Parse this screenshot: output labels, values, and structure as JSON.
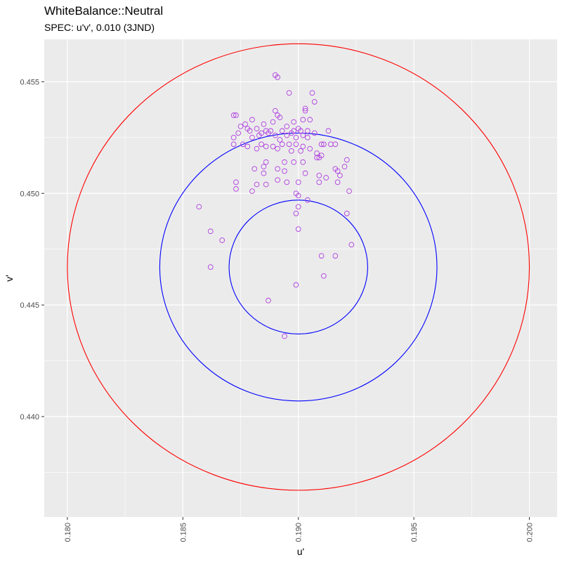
{
  "chart_data": {
    "type": "scatter",
    "title": "WhiteBalance::Neutral",
    "subtitle": "SPEC: u'v', 0.010 (3JND)",
    "xlabel": "u'",
    "ylabel": "v'",
    "xlim": [
      0.179,
      0.2012
    ],
    "ylim": [
      0.4355,
      0.4569
    ],
    "x_ticks": [
      "0.180",
      "0.185",
      "0.190",
      "0.195",
      "0.200"
    ],
    "y_ticks": [
      "0.440",
      "0.445",
      "0.450",
      "0.455"
    ],
    "grid": true,
    "background_color": "#EBEBEB",
    "point_color": "#B040E0",
    "circles": [
      {
        "center": [
          0.19,
          0.4467
        ],
        "radius": 0.01,
        "color": "#FF0000"
      },
      {
        "center": [
          0.19,
          0.4467
        ],
        "radius": 0.006,
        "color": "#0000FF"
      },
      {
        "center": [
          0.19,
          0.4467
        ],
        "radius": 0.003,
        "color": "#0000FF"
      }
    ],
    "points": [
      [
        0.1891,
        0.4552
      ],
      [
        0.189,
        0.4553
      ],
      [
        0.1896,
        0.4545
      ],
      [
        0.1906,
        0.4545
      ],
      [
        0.1907,
        0.4541
      ],
      [
        0.1872,
        0.4535
      ],
      [
        0.1873,
        0.4535
      ],
      [
        0.189,
        0.4537
      ],
      [
        0.1891,
        0.4535
      ],
      [
        0.1903,
        0.4537
      ],
      [
        0.1903,
        0.4538
      ],
      [
        0.1875,
        0.453
      ],
      [
        0.1877,
        0.4531
      ],
      [
        0.1878,
        0.4529
      ],
      [
        0.188,
        0.4533
      ],
      [
        0.1885,
        0.4531
      ],
      [
        0.1889,
        0.4532
      ],
      [
        0.1892,
        0.4534
      ],
      [
        0.1895,
        0.453
      ],
      [
        0.1898,
        0.4532
      ],
      [
        0.1902,
        0.4533
      ],
      [
        0.1905,
        0.4533
      ],
      [
        0.1893,
        0.4528
      ],
      [
        0.1901,
        0.4528
      ],
      [
        0.1904,
        0.4528
      ],
      [
        0.1874,
        0.4527
      ],
      [
        0.1879,
        0.4528
      ],
      [
        0.1882,
        0.4529
      ],
      [
        0.1884,
        0.4527
      ],
      [
        0.1886,
        0.4528
      ],
      [
        0.1888,
        0.4528
      ],
      [
        0.1898,
        0.4528
      ],
      [
        0.19,
        0.4529
      ],
      [
        0.1913,
        0.4528
      ],
      [
        0.1872,
        0.4525
      ],
      [
        0.188,
        0.4525
      ],
      [
        0.1883,
        0.4526
      ],
      [
        0.1887,
        0.4527
      ],
      [
        0.189,
        0.4526
      ],
      [
        0.1892,
        0.4524
      ],
      [
        0.1895,
        0.4526
      ],
      [
        0.1897,
        0.4527
      ],
      [
        0.1899,
        0.4525
      ],
      [
        0.1902,
        0.4526
      ],
      [
        0.1904,
        0.4525
      ],
      [
        0.1907,
        0.4527
      ],
      [
        0.191,
        0.4522
      ],
      [
        0.1872,
        0.4522
      ],
      [
        0.1876,
        0.4522
      ],
      [
        0.1878,
        0.4521
      ],
      [
        0.1882,
        0.452
      ],
      [
        0.1884,
        0.4522
      ],
      [
        0.1886,
        0.4521
      ],
      [
        0.1889,
        0.4521
      ],
      [
        0.1891,
        0.452
      ],
      [
        0.1893,
        0.4522
      ],
      [
        0.1896,
        0.4522
      ],
      [
        0.1899,
        0.4522
      ],
      [
        0.1902,
        0.4521
      ],
      [
        0.1905,
        0.452
      ],
      [
        0.1911,
        0.4522
      ],
      [
        0.1914,
        0.4522
      ],
      [
        0.1916,
        0.4522
      ],
      [
        0.1897,
        0.4519
      ],
      [
        0.1901,
        0.4519
      ],
      [
        0.1908,
        0.4518
      ],
      [
        0.1909,
        0.4516
      ],
      [
        0.1908,
        0.4516
      ],
      [
        0.191,
        0.4517
      ],
      [
        0.1921,
        0.4515
      ],
      [
        0.1886,
        0.4514
      ],
      [
        0.1894,
        0.4514
      ],
      [
        0.1898,
        0.4514
      ],
      [
        0.1902,
        0.4514
      ],
      [
        0.1881,
        0.4511
      ],
      [
        0.1885,
        0.4512
      ],
      [
        0.1891,
        0.4511
      ],
      [
        0.1894,
        0.451
      ],
      [
        0.1916,
        0.4511
      ],
      [
        0.1917,
        0.451
      ],
      [
        0.192,
        0.4512
      ],
      [
        0.1885,
        0.4509
      ],
      [
        0.1903,
        0.4509
      ],
      [
        0.1909,
        0.4508
      ],
      [
        0.1912,
        0.4507
      ],
      [
        0.1918,
        0.4508
      ],
      [
        0.1873,
        0.4505
      ],
      [
        0.1882,
        0.4504
      ],
      [
        0.1886,
        0.4504
      ],
      [
        0.1891,
        0.4506
      ],
      [
        0.1895,
        0.4505
      ],
      [
        0.19,
        0.4505
      ],
      [
        0.1909,
        0.4505
      ],
      [
        0.1917,
        0.4505
      ],
      [
        0.1873,
        0.4502
      ],
      [
        0.188,
        0.4501
      ],
      [
        0.1899,
        0.45
      ],
      [
        0.19,
        0.4499
      ],
      [
        0.1922,
        0.4501
      ],
      [
        0.1904,
        0.4497
      ],
      [
        0.1857,
        0.4494
      ],
      [
        0.19,
        0.4494
      ],
      [
        0.1899,
        0.4491
      ],
      [
        0.1921,
        0.4491
      ],
      [
        0.1862,
        0.4483
      ],
      [
        0.19,
        0.4484
      ],
      [
        0.1867,
        0.4479
      ],
      [
        0.1923,
        0.4477
      ],
      [
        0.191,
        0.4472
      ],
      [
        0.1916,
        0.4472
      ],
      [
        0.1862,
        0.4467
      ],
      [
        0.1911,
        0.4463
      ],
      [
        0.1899,
        0.4459
      ],
      [
        0.1887,
        0.4452
      ],
      [
        0.1894,
        0.4436
      ]
    ]
  }
}
